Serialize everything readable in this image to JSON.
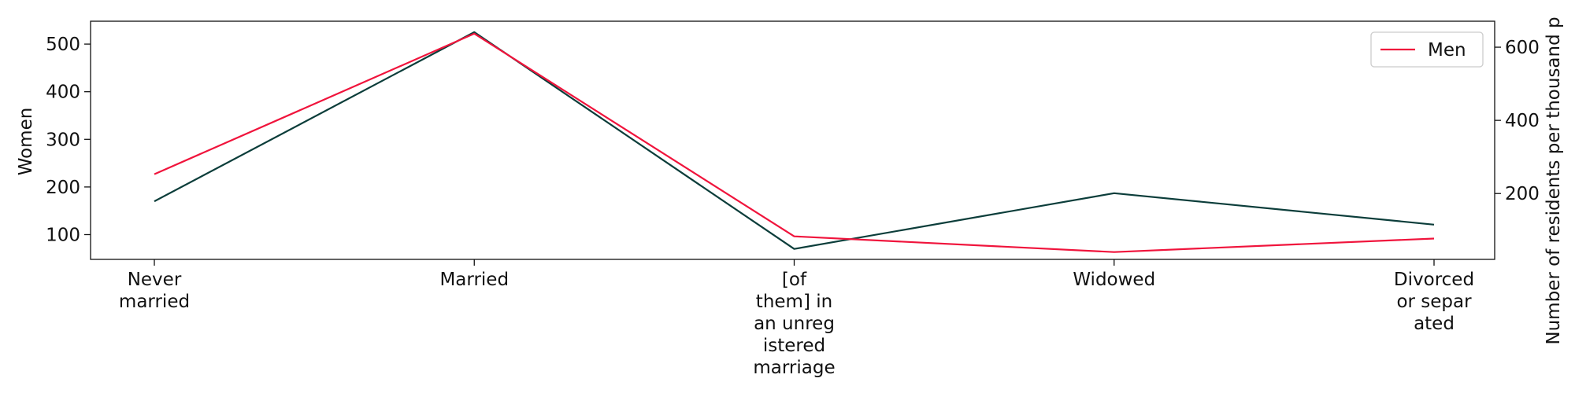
{
  "chart_data": {
    "type": "line",
    "categories": [
      [
        "Never",
        "married"
      ],
      [
        "Married"
      ],
      [
        "[of",
        "them] in",
        "an unreg",
        "istered",
        "marriage"
      ],
      [
        "Widowed"
      ],
      [
        "Divorced",
        "or separ",
        "ated"
      ]
    ],
    "series": [
      {
        "name": "Women",
        "axis": "left",
        "color": "#0b3d3a",
        "values": [
          170,
          525,
          70,
          187,
          121
        ]
      },
      {
        "name": "Men",
        "axis": "right",
        "color": "#f0143c",
        "values": [
          253,
          637,
          83,
          40,
          77
        ]
      }
    ],
    "y_left": {
      "label": "Women",
      "ticks": [
        100,
        200,
        300,
        400,
        500
      ],
      "range": [
        48,
        548
      ]
    },
    "y_right": {
      "label": "Number of residents per thousand p",
      "ticks": [
        200,
        400,
        600
      ],
      "range": [
        20,
        671
      ]
    },
    "legend": {
      "entries": [
        "Men"
      ],
      "placement": "top-right"
    },
    "grid": false
  }
}
